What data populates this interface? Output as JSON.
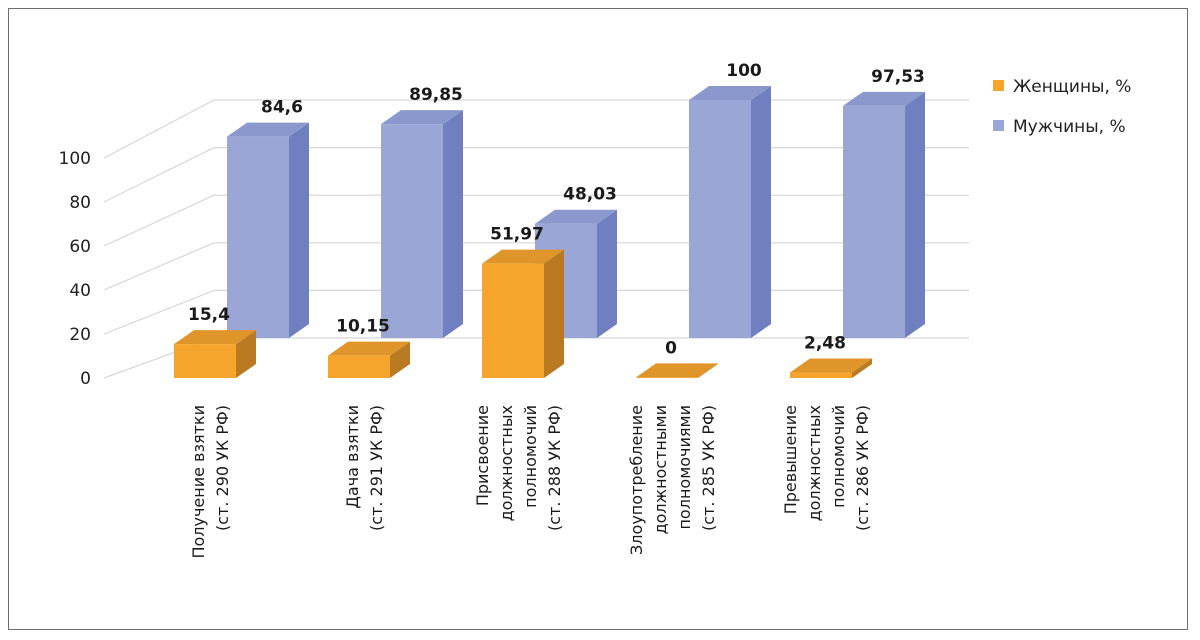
{
  "chart_data": {
    "type": "bar",
    "title": "",
    "xlabel": "",
    "ylabel": "",
    "ylim": [
      0,
      100
    ],
    "yticks": [
      "0",
      "20",
      "40",
      "60",
      "80",
      "100"
    ],
    "categories": [
      [
        "Получение взятки",
        "(ст. 290 УК РФ)"
      ],
      [
        "Дача взятки",
        "(ст. 291 УК РФ)"
      ],
      [
        "Присвоение",
        "должностных",
        "полномочий",
        "(ст. 288 УК РФ)"
      ],
      [
        "Злоупотребление",
        "должностными",
        "полномочиями",
        "(ст. 285 УК РФ)"
      ],
      [
        "Превышение",
        "должностных",
        "полномочий",
        "(ст. 286 УК РФ)"
      ]
    ],
    "series": [
      {
        "name": "Женщины, %",
        "values": [
          15.4,
          10.15,
          51.97,
          0,
          2.48
        ],
        "labels": [
          "15,4",
          "10,15",
          "51,97",
          "0",
          "2,48"
        ]
      },
      {
        "name": "Мужчины, %",
        "values": [
          84.6,
          89.85,
          48.03,
          100,
          97.53
        ],
        "labels": [
          "84,6",
          "89,85",
          "48,03",
          "100",
          "97,53"
        ]
      }
    ],
    "grid": true,
    "legend_position": "right",
    "colors": {
      "women_front": "#f5a52b",
      "women_top": "#e0952a",
      "women_side": "#b97a22",
      "men_front": "#9aa7d6",
      "men_top": "#8b98cd",
      "men_side": "#6f7fbf",
      "grid": "#d6d6d6",
      "label": "#1a1a1a"
    }
  }
}
